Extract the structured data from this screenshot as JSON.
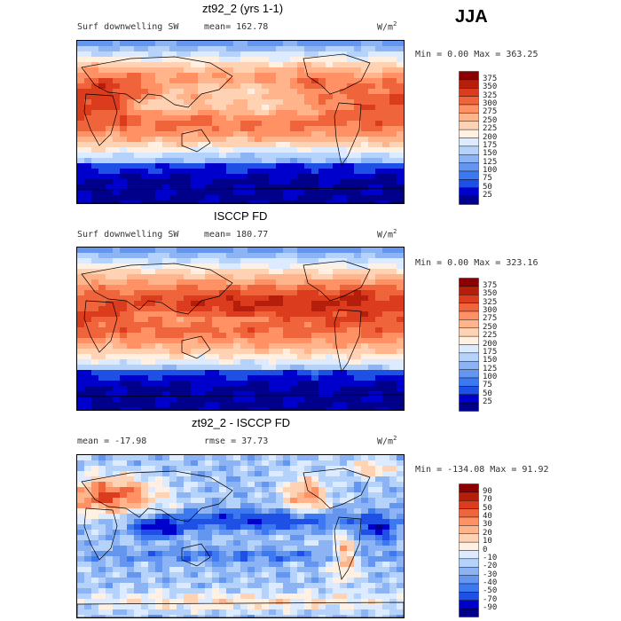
{
  "season": "JJA",
  "panels": [
    {
      "title": "zt92_2 (yrs 1-1)",
      "left_label": "Surf downwelling SW",
      "center_label": "mean= 162.78",
      "units": "W/m",
      "units_exp": "2",
      "stats": "Min =    0.00 Max = 363.25",
      "colorbar_labels": [
        "375",
        "350",
        "325",
        "300",
        "275",
        "250",
        "225",
        "200",
        "175",
        "150",
        "125",
        "100",
        "75",
        "50",
        "25"
      ]
    },
    {
      "title": "ISCCP FD",
      "left_label": "Surf downwelling SW",
      "center_label": "mean= 180.77",
      "units": "W/m",
      "units_exp": "2",
      "stats": "Min =    0.00 Max = 323.16",
      "colorbar_labels": [
        "375",
        "350",
        "325",
        "300",
        "275",
        "250",
        "225",
        "200",
        "175",
        "150",
        "125",
        "100",
        "75",
        "50",
        "25"
      ]
    },
    {
      "title": "zt92_2 - ISCCP FD",
      "left_label": "mean = -17.98",
      "center_label": "rmse =  37.73",
      "units": "W/m",
      "units_exp": "2",
      "stats": "Min = -134.08 Max =  91.92",
      "colorbar_labels": [
        "90",
        "70",
        "50",
        "40",
        "30",
        "20",
        "10",
        "0",
        "-10",
        "-20",
        "-30",
        "-40",
        "-50",
        "-70",
        "-90"
      ]
    }
  ],
  "chart_data": [
    {
      "type": "heatmap",
      "title": "zt92_2 (yrs 1-1)",
      "variable": "Surf downwelling SW",
      "mean": 162.78,
      "min": 0.0,
      "max": 363.25,
      "contour_levels": [
        25,
        50,
        75,
        100,
        125,
        150,
        175,
        200,
        225,
        250,
        275,
        300,
        325,
        350,
        375
      ]
    },
    {
      "type": "heatmap",
      "title": "ISCCP FD",
      "variable": "Surf downwelling SW",
      "mean": 180.77,
      "min": 0.0,
      "max": 323.16,
      "contour_levels": [
        25,
        50,
        75,
        100,
        125,
        150,
        175,
        200,
        225,
        250,
        275,
        300,
        325,
        350,
        375
      ]
    },
    {
      "type": "heatmap",
      "title": "zt92_2 - ISCCP FD",
      "mean": -17.98,
      "rmse": 37.73,
      "min": -134.08,
      "max": 91.92,
      "contour_levels": [
        -90,
        -70,
        -50,
        -40,
        -30,
        -20,
        -10,
        0,
        10,
        20,
        30,
        40,
        50,
        70,
        90
      ]
    }
  ],
  "colors": {
    "seq": [
      "#00008b",
      "#0000cd",
      "#1e50e6",
      "#3c78f0",
      "#6496f0",
      "#8cb4f5",
      "#b4d2fa",
      "#dcebff",
      "#fff0e1",
      "#ffd2b4",
      "#ffb48c",
      "#ff9164",
      "#f0643c",
      "#dc3c1e",
      "#b41e0a",
      "#8b0000"
    ],
    "div": [
      "#00008b",
      "#0000cd",
      "#1e50e6",
      "#3c78f0",
      "#6496f0",
      "#8cb4f5",
      "#b4d2fa",
      "#dcebff",
      "#fff0e1",
      "#ffd2b4",
      "#ffb48c",
      "#ff9164",
      "#f0643c",
      "#dc3c1e",
      "#b41e0a",
      "#8b0000"
    ]
  }
}
